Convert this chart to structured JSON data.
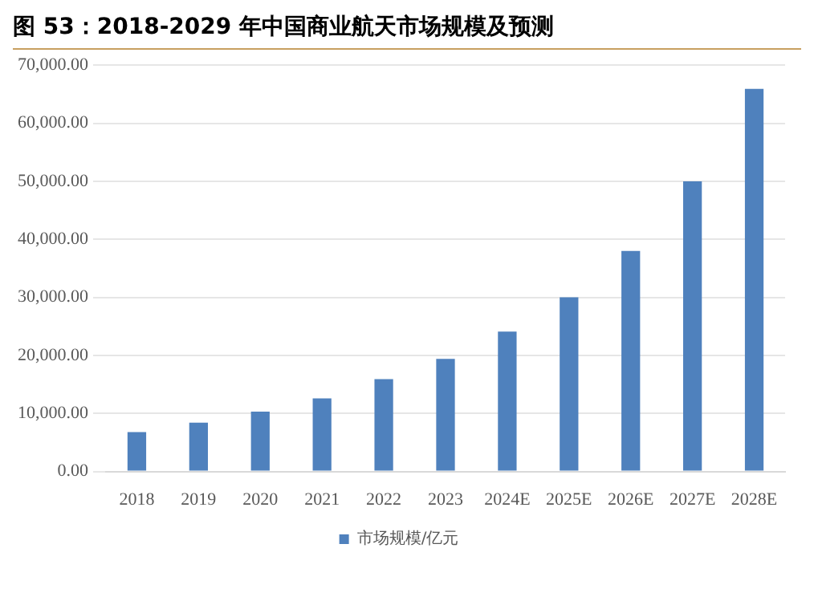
{
  "chart_data": {
    "type": "bar",
    "title": "图 53：2018-2029 年中国商业航天市场规模及预测",
    "categories": [
      "2018",
      "2019",
      "2020",
      "2021",
      "2022",
      "2023",
      "2024E",
      "2025E",
      "2026E",
      "2027E",
      "2028E"
    ],
    "series": [
      {
        "name": "市场规模/亿元",
        "color": "#4f81bd",
        "values": [
          6800,
          8400,
          10300,
          12600,
          15900,
          19400,
          24100,
          30000,
          38000,
          50000,
          65900
        ]
      }
    ],
    "ylim": [
      0,
      70000
    ],
    "yticks": [
      {
        "value": 0,
        "label": "0.00"
      },
      {
        "value": 10000,
        "label": "10,000.00"
      },
      {
        "value": 20000,
        "label": "20,000.00"
      },
      {
        "value": 30000,
        "label": "30,000.00"
      },
      {
        "value": 40000,
        "label": "40,000.00"
      },
      {
        "value": 50000,
        "label": "50,000.00"
      },
      {
        "value": 60000,
        "label": "60,000.00"
      },
      {
        "value": 70000,
        "label": "70,000.00"
      }
    ],
    "grid": "y",
    "legend": "bottom"
  }
}
